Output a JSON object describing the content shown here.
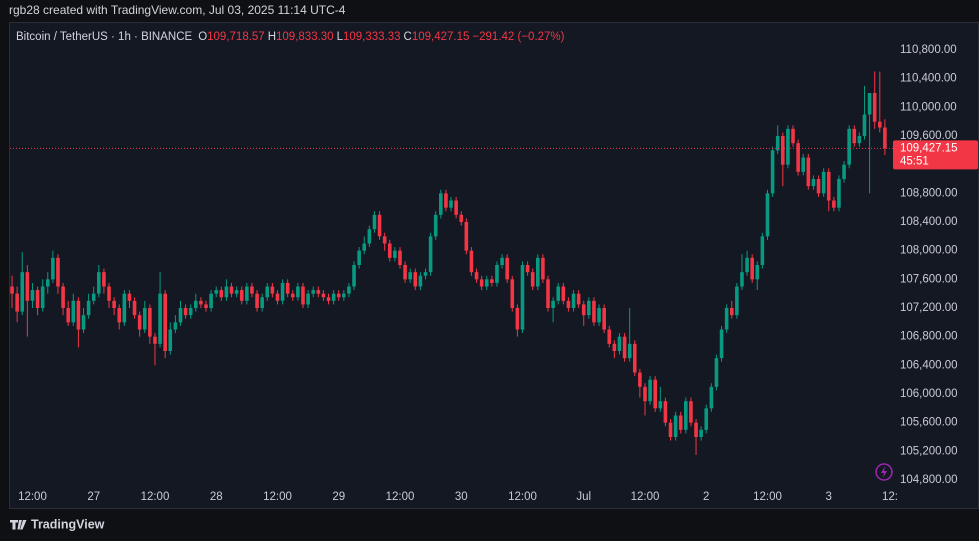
{
  "header": {
    "attribution": "rgb28 created with TradingView.com, Jul 03, 2025 11:14 UTC-4"
  },
  "footer": {
    "brand": "TradingView"
  },
  "chart_data": {
    "type": "candlestick",
    "symbol": "Bitcoin / TetherUS · 1h · BINANCE",
    "ohlc_legend": [
      {
        "label": "O",
        "value": "109,718.57"
      },
      {
        "label": "H",
        "value": "109,833.30"
      },
      {
        "label": "L",
        "value": "109,333.33"
      },
      {
        "label": "C",
        "value": "109,427.15"
      }
    ],
    "change": "−291.42 (−0.27%)",
    "last_price_label": "109,427.15",
    "countdown": "45:51",
    "up_color": "#089981",
    "down_color": "#f23645",
    "grid": false,
    "ylim": [
      104758,
      111163
    ],
    "yticks": [
      {
        "value": 104800,
        "label": "104,800.00"
      },
      {
        "value": 105200,
        "label": "105,200.00"
      },
      {
        "value": 105600,
        "label": "105,600.00"
      },
      {
        "value": 106000,
        "label": "106,000.00"
      },
      {
        "value": 106400,
        "label": "106,400.00"
      },
      {
        "value": 106800,
        "label": "106,800.00"
      },
      {
        "value": 107200,
        "label": "107,200.00"
      },
      {
        "value": 107600,
        "label": "107,600.00"
      },
      {
        "value": 108000,
        "label": "108,000.00"
      },
      {
        "value": 108400,
        "label": "108,400.00"
      },
      {
        "value": 108800,
        "label": "108,800.00"
      },
      {
        "value": 109200,
        "label": "109,200.00"
      },
      {
        "value": 109600,
        "label": "109,600.00"
      },
      {
        "value": 110000,
        "label": "110,000.00"
      },
      {
        "value": 110400,
        "label": "110,400.00"
      },
      {
        "value": 110800,
        "label": "110,800.00"
      }
    ],
    "xlim": [
      -0.4,
      172
    ],
    "xticks": [
      {
        "value": 4,
        "label": "12:00"
      },
      {
        "value": 16,
        "label": "27"
      },
      {
        "value": 28,
        "label": "12:00"
      },
      {
        "value": 40,
        "label": "28"
      },
      {
        "value": 52,
        "label": "12:00"
      },
      {
        "value": 64,
        "label": "29"
      },
      {
        "value": 76,
        "label": "12:00"
      },
      {
        "value": 88,
        "label": "30"
      },
      {
        "value": 100,
        "label": "12:00"
      },
      {
        "value": 112,
        "label": "Jul"
      },
      {
        "value": 124,
        "label": "12:00"
      },
      {
        "value": 136,
        "label": "2"
      },
      {
        "value": 148,
        "label": "12:00"
      },
      {
        "value": 160,
        "label": "3"
      },
      {
        "value": 172,
        "label": "12:"
      }
    ],
    "candles": [
      [
        107500,
        107650,
        107200,
        107400
      ],
      [
        107400,
        107500,
        107000,
        107150
      ],
      [
        107150,
        107980,
        107100,
        107700
      ],
      [
        107700,
        107800,
        106800,
        107300
      ],
      [
        107300,
        107550,
        107200,
        107450
      ],
      [
        107450,
        107500,
        107100,
        107200
      ],
      [
        107200,
        107600,
        107150,
        107500
      ],
      [
        107500,
        107700,
        107400,
        107600
      ],
      [
        107600,
        108000,
        107550,
        107900
      ],
      [
        107900,
        107950,
        107400,
        107500
      ],
      [
        107500,
        107550,
        107100,
        107200
      ],
      [
        107200,
        107300,
        106950,
        107000
      ],
      [
        107000,
        107400,
        106950,
        107300
      ],
      [
        107300,
        107350,
        106650,
        106900
      ],
      [
        106900,
        107200,
        106850,
        107100
      ],
      [
        107100,
        107400,
        107050,
        107300
      ],
      [
        107300,
        107500,
        107250,
        107400
      ],
      [
        107400,
        107800,
        107350,
        107700
      ],
      [
        107700,
        107750,
        107400,
        107500
      ],
      [
        107500,
        107550,
        107200,
        107300
      ],
      [
        107300,
        107350,
        107100,
        107200
      ],
      [
        107200,
        107250,
        106900,
        107000
      ],
      [
        107000,
        107450,
        106950,
        107400
      ],
      [
        107400,
        107450,
        107200,
        107300
      ],
      [
        107300,
        107350,
        107050,
        107100
      ],
      [
        107100,
        107150,
        106800,
        106900
      ],
      [
        106900,
        107300,
        106850,
        107200
      ],
      [
        107200,
        107250,
        106700,
        106800
      ],
      [
        106800,
        106850,
        106400,
        106700
      ],
      [
        106700,
        107700,
        106650,
        107400
      ],
      [
        107400,
        107450,
        106500,
        106600
      ],
      [
        106600,
        107000,
        106550,
        106900
      ],
      [
        106900,
        107100,
        106850,
        107000
      ],
      [
        107000,
        107300,
        106950,
        107200
      ],
      [
        107200,
        107250,
        107050,
        107100
      ],
      [
        107100,
        107250,
        107050,
        107200
      ],
      [
        107200,
        107400,
        107150,
        107300
      ],
      [
        107300,
        107350,
        107200,
        107250
      ],
      [
        107250,
        107300,
        107150,
        107200
      ],
      [
        107200,
        107450,
        107150,
        107400
      ],
      [
        107400,
        107500,
        107350,
        107450
      ],
      [
        107450,
        107500,
        107300,
        107350
      ],
      [
        107350,
        107600,
        107300,
        107500
      ],
      [
        107500,
        107550,
        107350,
        107400
      ],
      [
        107400,
        107500,
        107350,
        107450
      ],
      [
        107450,
        107500,
        107250,
        107300
      ],
      [
        107300,
        107550,
        107250,
        107500
      ],
      [
        107500,
        107550,
        107350,
        107400
      ],
      [
        107400,
        107450,
        107150,
        107200
      ],
      [
        107200,
        107400,
        107150,
        107350
      ],
      [
        107350,
        107550,
        107300,
        107500
      ],
      [
        107500,
        107550,
        107350,
        107400
      ],
      [
        107400,
        107450,
        107250,
        107300
      ],
      [
        107300,
        107600,
        107250,
        107550
      ],
      [
        107550,
        107600,
        107350,
        107400
      ],
      [
        107400,
        107450,
        107300,
        107350
      ],
      [
        107350,
        107550,
        107300,
        107500
      ],
      [
        107500,
        107550,
        107200,
        107250
      ],
      [
        107250,
        107450,
        107200,
        107400
      ],
      [
        107400,
        107500,
        107350,
        107450
      ],
      [
        107450,
        107500,
        107350,
        107400
      ],
      [
        107400,
        107450,
        107300,
        107350
      ],
      [
        107350,
        107400,
        107250,
        107300
      ],
      [
        107300,
        107450,
        107250,
        107400
      ],
      [
        107400,
        107450,
        107300,
        107350
      ],
      [
        107350,
        107450,
        107300,
        107400
      ],
      [
        107400,
        107550,
        107350,
        107500
      ],
      [
        107500,
        107850,
        107450,
        107800
      ],
      [
        107800,
        108050,
        107750,
        108000
      ],
      [
        108000,
        108200,
        107950,
        108100
      ],
      [
        108100,
        108350,
        108050,
        108300
      ],
      [
        108300,
        108550,
        108250,
        108500
      ],
      [
        108500,
        108550,
        108150,
        108200
      ],
      [
        108200,
        108250,
        108000,
        108100
      ],
      [
        108100,
        108150,
        107850,
        107900
      ],
      [
        107900,
        108050,
        107850,
        108000
      ],
      [
        108000,
        108050,
        107750,
        107800
      ],
      [
        107800,
        107850,
        107550,
        107600
      ],
      [
        107600,
        107750,
        107550,
        107700
      ],
      [
        107700,
        107750,
        107450,
        107500
      ],
      [
        107500,
        107700,
        107450,
        107650
      ],
      [
        107650,
        107750,
        107600,
        107700
      ],
      [
        107700,
        108250,
        107650,
        108200
      ],
      [
        108200,
        108550,
        108150,
        108500
      ],
      [
        108500,
        108850,
        108450,
        108800
      ],
      [
        108800,
        108850,
        108550,
        108600
      ],
      [
        108600,
        108750,
        108550,
        108700
      ],
      [
        108700,
        108750,
        108450,
        108500
      ],
      [
        108500,
        108550,
        108350,
        108400
      ],
      [
        108400,
        108450,
        107950,
        108000
      ],
      [
        108000,
        108050,
        107650,
        107700
      ],
      [
        107700,
        107750,
        107550,
        107600
      ],
      [
        107600,
        107650,
        107450,
        107500
      ],
      [
        107500,
        107650,
        107450,
        107600
      ],
      [
        107600,
        107650,
        107500,
        107550
      ],
      [
        107550,
        107850,
        107500,
        107800
      ],
      [
        107800,
        107950,
        107750,
        107900
      ],
      [
        107900,
        107950,
        107550,
        107600
      ],
      [
        107600,
        107650,
        107150,
        107200
      ],
      [
        107200,
        107250,
        106800,
        106900
      ],
      [
        106900,
        107850,
        106850,
        107800
      ],
      [
        107800,
        107850,
        107650,
        107700
      ],
      [
        107700,
        107750,
        107450,
        107500
      ],
      [
        107500,
        107950,
        107450,
        107900
      ],
      [
        107900,
        107950,
        107550,
        107600
      ],
      [
        107600,
        107650,
        107150,
        107200
      ],
      [
        107200,
        107350,
        107000,
        107300
      ],
      [
        107300,
        107550,
        107250,
        107500
      ],
      [
        107500,
        107550,
        107250,
        107300
      ],
      [
        107300,
        107350,
        107150,
        107200
      ],
      [
        107200,
        107450,
        107150,
        107400
      ],
      [
        107400,
        107450,
        107200,
        107250
      ],
      [
        107250,
        107300,
        106950,
        107100
      ],
      [
        107100,
        107350,
        107050,
        107300
      ],
      [
        107300,
        107350,
        106950,
        107000
      ],
      [
        107000,
        107250,
        106950,
        107200
      ],
      [
        107200,
        107250,
        106850,
        106900
      ],
      [
        106900,
        106950,
        106650,
        106700
      ],
      [
        106700,
        106750,
        106500,
        106600
      ],
      [
        106600,
        106850,
        106550,
        106800
      ],
      [
        106800,
        106850,
        106450,
        106500
      ],
      [
        106500,
        107200,
        106450,
        106700
      ],
      [
        106700,
        106750,
        106250,
        106300
      ],
      [
        106300,
        106350,
        105950,
        106100
      ],
      [
        106100,
        106150,
        105700,
        105900
      ],
      [
        105900,
        106250,
        105850,
        106200
      ],
      [
        106200,
        106250,
        105750,
        105800
      ],
      [
        105800,
        106100,
        105750,
        105900
      ],
      [
        105900,
        105950,
        105550,
        105600
      ],
      [
        105600,
        105650,
        105350,
        105400
      ],
      [
        105400,
        105750,
        105350,
        105700
      ],
      [
        105700,
        105750,
        105450,
        105500
      ],
      [
        105500,
        105950,
        105450,
        105900
      ],
      [
        105900,
        105950,
        105550,
        105600
      ],
      [
        105600,
        105650,
        105150,
        105400
      ],
      [
        105400,
        105550,
        105350,
        105500
      ],
      [
        105500,
        105850,
        105450,
        105800
      ],
      [
        105800,
        106150,
        105750,
        106100
      ],
      [
        106100,
        106550,
        106050,
        106500
      ],
      [
        106500,
        106950,
        106450,
        106900
      ],
      [
        106900,
        107250,
        106850,
        107200
      ],
      [
        107200,
        107300,
        107050,
        107100
      ],
      [
        107100,
        107550,
        107050,
        107500
      ],
      [
        107500,
        107950,
        107450,
        107700
      ],
      [
        107700,
        108000,
        107650,
        107900
      ],
      [
        107900,
        107950,
        107550,
        107600
      ],
      [
        107600,
        107850,
        107450,
        107800
      ],
      [
        107800,
        108250,
        107750,
        108200
      ],
      [
        108200,
        108850,
        108150,
        108800
      ],
      [
        108800,
        109450,
        108750,
        109400
      ],
      [
        109400,
        109750,
        109350,
        109600
      ],
      [
        109600,
        109650,
        108900,
        109200
      ],
      [
        109200,
        109750,
        109150,
        109700
      ],
      [
        109700,
        109750,
        109450,
        109500
      ],
      [
        109500,
        109550,
        109050,
        109100
      ],
      [
        109100,
        109350,
        109050,
        109300
      ],
      [
        109300,
        109350,
        108850,
        108900
      ],
      [
        108900,
        109050,
        108850,
        109000
      ],
      [
        109000,
        109050,
        108750,
        108800
      ],
      [
        108800,
        109150,
        108750,
        109100
      ],
      [
        109100,
        109150,
        108550,
        108700
      ],
      [
        108700,
        108750,
        108550,
        108600
      ],
      [
        108600,
        109050,
        108550,
        109000
      ],
      [
        109000,
        109250,
        108950,
        109200
      ],
      [
        109200,
        109750,
        109150,
        109700
      ],
      [
        109700,
        109750,
        109450,
        109500
      ],
      [
        109500,
        109650,
        109450,
        109600
      ],
      [
        109600,
        110300,
        109550,
        109900
      ],
      [
        109900,
        110200,
        108800,
        110200
      ],
      [
        110200,
        110500,
        109700,
        109800
      ],
      [
        109800,
        110500,
        109650,
        109718.57
      ],
      [
        109718.57,
        109833.3,
        109333.33,
        109427.15
      ]
    ]
  }
}
